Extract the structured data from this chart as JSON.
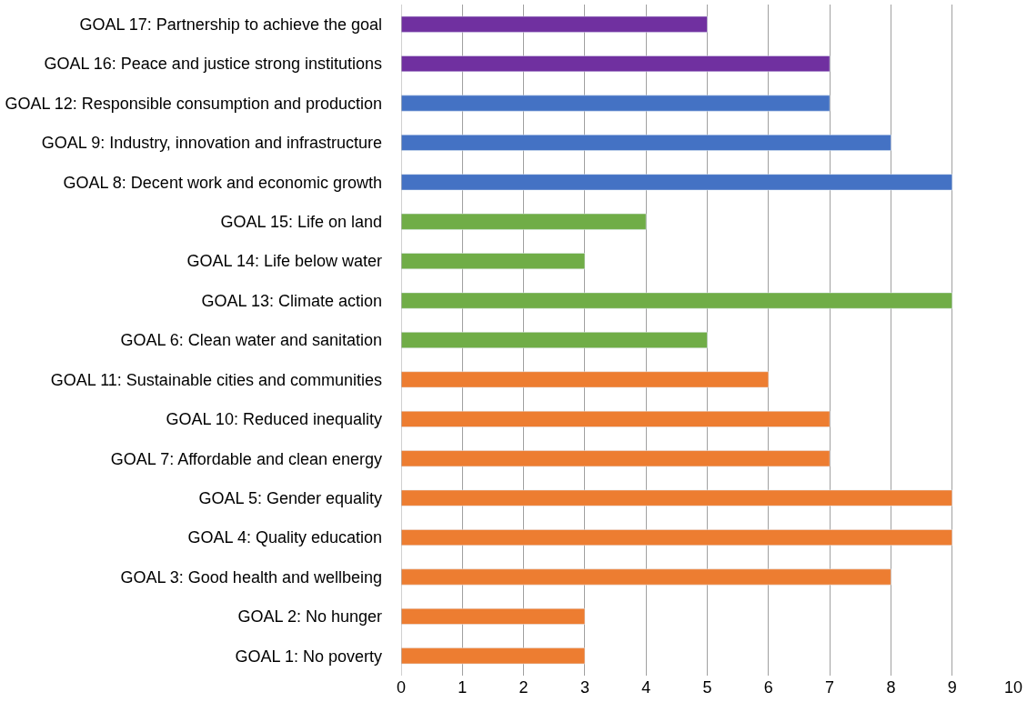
{
  "chart_data": {
    "type": "bar",
    "orientation": "horizontal",
    "categories": [
      "GOAL 17: Partnership to achieve the goal",
      "GOAL 16: Peace and justice strong institutions",
      "GOAL 12: Responsible consumption and production",
      "GOAL 9: Industry, innovation and infrastructure",
      "GOAL 8: Decent work and economic growth",
      "GOAL 15: Life on land",
      "GOAL 14: Life below water",
      "GOAL 13: Climate action",
      "GOAL 6: Clean water and sanitation",
      "GOAL 11: Sustainable cities and communities",
      "GOAL 10: Reduced inequality",
      "GOAL 7: Affordable and clean energy",
      "GOAL 5: Gender equality",
      "GOAL 4: Quality education",
      "GOAL 3: Good health and wellbeing",
      "GOAL 2: No hunger",
      "GOAL 1: No poverty"
    ],
    "values": [
      5,
      7,
      7,
      8,
      9,
      4,
      3,
      9,
      5,
      6,
      7,
      7,
      9,
      9,
      8,
      3,
      3
    ],
    "colors": [
      "#7030a0",
      "#7030a0",
      "#4472c4",
      "#4472c4",
      "#4472c4",
      "#70ad47",
      "#70ad47",
      "#70ad47",
      "#70ad47",
      "#ed7d31",
      "#ed7d31",
      "#ed7d31",
      "#ed7d31",
      "#ed7d31",
      "#ed7d31",
      "#ed7d31",
      "#ed7d31"
    ],
    "xlim": [
      0,
      10
    ],
    "xticks": [
      0,
      1,
      2,
      3,
      4,
      5,
      6,
      7,
      8,
      9,
      10
    ],
    "grid": "x"
  }
}
